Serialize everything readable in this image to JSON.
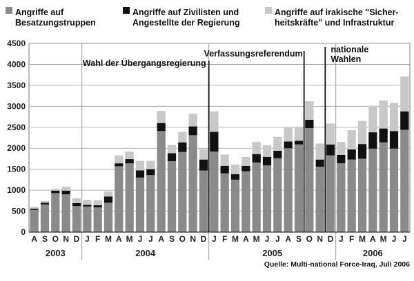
{
  "legend": [
    {
      "key": "besatzung",
      "line1": "Angriffe auf",
      "line2": "Besatzungstruppen",
      "color": "#8a8a8a"
    },
    {
      "key": "zivil",
      "line1": "Angriffe auf Zivilisten und",
      "line2": "Angestellte der Regierung",
      "color": "#111111"
    },
    {
      "key": "irak",
      "line1": "Angriffe auf irakische \"Sicher-",
      "line2": "heitskräfte\" und Infrastruktur",
      "color": "#c8c8c8"
    }
  ],
  "source": "Quelle: Multi-national Force-Iraq, Juli 2006",
  "chart_data": {
    "type": "bar",
    "stacked": true,
    "ylim": [
      0,
      4500
    ],
    "yticks": [
      0,
      500,
      1000,
      1500,
      2000,
      2500,
      3000,
      3500,
      4000,
      4500
    ],
    "grid": true,
    "categories": [
      "A",
      "S",
      "O",
      "N",
      "D",
      "J",
      "F",
      "M",
      "A",
      "M",
      "J",
      "J",
      "A",
      "S",
      "O",
      "N",
      "D",
      "J",
      "F",
      "M",
      "A",
      "M",
      "J",
      "J",
      "A",
      "S",
      "O",
      "N",
      "D",
      "J",
      "F",
      "M",
      "A",
      "M",
      "J",
      "J"
    ],
    "years": [
      {
        "label": "2003",
        "from": 0,
        "to": 4
      },
      {
        "label": "2004",
        "from": 5,
        "to": 16
      },
      {
        "label": "2005",
        "from": 17,
        "to": 28
      },
      {
        "label": "2006",
        "from": 29,
        "to": 35
      }
    ],
    "series": [
      {
        "name": "Angriffe auf Besatzungstruppen",
        "color": "#8a8a8a",
        "values": [
          530,
          660,
          930,
          900,
          620,
          610,
          590,
          700,
          1570,
          1640,
          1300,
          1360,
          2410,
          1690,
          1910,
          2310,
          1470,
          1920,
          1400,
          1250,
          1450,
          1660,
          1590,
          1760,
          2000,
          2090,
          2480,
          1560,
          1830,
          1640,
          1730,
          1750,
          1990,
          2140,
          1990,
          2440
        ]
      },
      {
        "name": "Angriffe auf Zivilisten und Angestellte der Regierung",
        "color": "#111111",
        "values": [
          30,
          40,
          60,
          90,
          70,
          40,
          50,
          150,
          70,
          100,
          170,
          140,
          190,
          190,
          230,
          210,
          260,
          470,
          180,
          130,
          130,
          200,
          200,
          180,
          160,
          90,
          200,
          170,
          260,
          200,
          240,
          350,
          390,
          330,
          420,
          440
        ]
      },
      {
        "name": "Angriffe auf irakische \"Sicherheitskräfte\" und Infrastruktur",
        "color": "#c8c8c8",
        "values": [
          40,
          40,
          40,
          90,
          120,
          120,
          120,
          120,
          190,
          180,
          230,
          200,
          290,
          200,
          250,
          300,
          250,
          490,
          270,
          230,
          210,
          290,
          280,
          330,
          330,
          330,
          440,
          380,
          500,
          310,
          460,
          550,
          630,
          670,
          670,
          830
        ]
      }
    ],
    "annotations": [
      {
        "label": "Wahl der Übergangsregierung",
        "at": 16.5
      },
      {
        "label": "Verfassungsreferendum",
        "at": 25.5
      },
      {
        "label": "nationale\nWahlen",
        "at": 27.5
      }
    ],
    "year_separators": [
      4.5,
      16.5,
      28.5
    ]
  }
}
